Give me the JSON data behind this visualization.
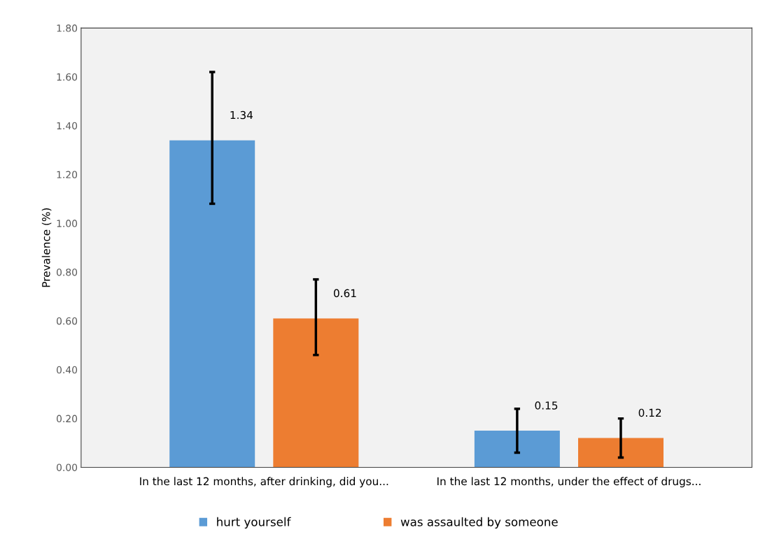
{
  "chart_data": {
    "type": "bar",
    "ylabel": "Prevalence (%)",
    "categories": [
      "In the last 12 months, after drinking, did you...",
      "In the last 12 months, under the effect of drugs..."
    ],
    "series": [
      {
        "name": "hurt yourself",
        "color": "#5b9bd5",
        "values": [
          1.34,
          0.15
        ],
        "errors": [
          [
            1.08,
            1.62
          ],
          [
            0.06,
            0.24
          ]
        ]
      },
      {
        "name": "was assaulted by someone",
        "color": "#ed7d31",
        "values": [
          0.61,
          0.12
        ],
        "errors": [
          [
            0.46,
            0.77
          ],
          [
            0.04,
            0.2
          ]
        ]
      }
    ],
    "ylim": [
      0,
      1.8
    ],
    "yticks": [
      {
        "value": 0,
        "label": "0.00"
      },
      {
        "value": 0.2,
        "label": "0.20"
      },
      {
        "value": 0.4,
        "label": "0.40"
      },
      {
        "value": 0.6,
        "label": "0.60"
      },
      {
        "value": 0.8,
        "label": "0.80"
      },
      {
        "value": 1.0,
        "label": "1.00"
      },
      {
        "value": 1.2,
        "label": "1.20"
      },
      {
        "value": 1.4,
        "label": "1.40"
      },
      {
        "value": 1.6,
        "label": "1.60"
      },
      {
        "value": 1.8,
        "label": "1.80"
      }
    ],
    "data_labels": true,
    "grid": false,
    "legend": "bottom"
  }
}
